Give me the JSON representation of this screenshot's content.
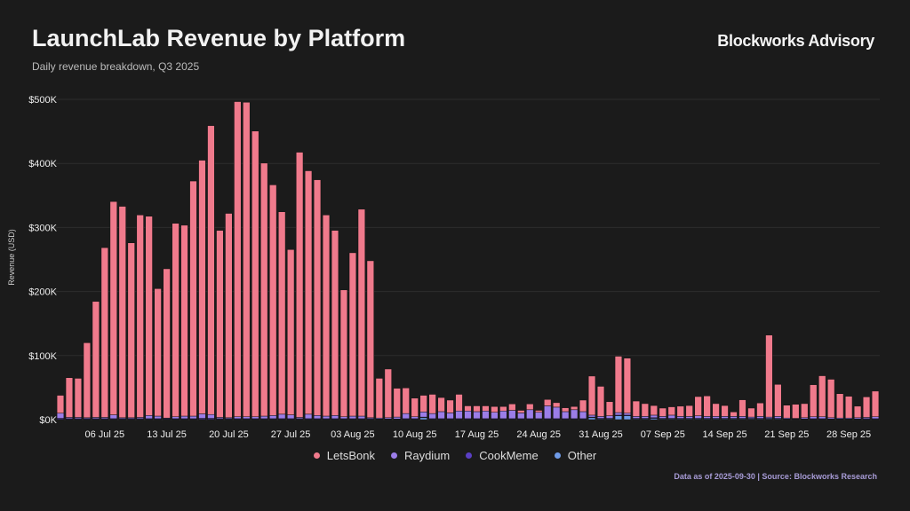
{
  "header": {
    "title": "LaunchLab Revenue by Platform",
    "subtitle": "Daily revenue breakdown, Q3 2025",
    "brand": "Blockworks Advisory"
  },
  "footer": "Data as of 2025-09-30 | Source: Blockworks Research",
  "colors": {
    "LetsBonk": "#f07a8c",
    "Raydium": "#9b7de8",
    "CookMeme": "#5a3fc4",
    "Other": "#6f9be8",
    "background": "#1b1b1b",
    "grid": "#2c2c2c"
  },
  "chart_data": {
    "type": "bar",
    "stacked": true,
    "title": "LaunchLab Revenue by Platform",
    "subtitle": "Daily revenue breakdown, Q3 2025",
    "xlabel": "",
    "ylabel": "Revenue (USD)",
    "ylim": [
      0,
      500000
    ],
    "yticks": [
      0,
      100000,
      200000,
      300000,
      400000,
      500000
    ],
    "ytick_labels": [
      "$0K",
      "$100K",
      "$200K",
      "$300K",
      "$400K",
      "$500K"
    ],
    "xtick_labels": [
      {
        "day_index": 5,
        "label": "06 Jul 25"
      },
      {
        "day_index": 12,
        "label": "13 Jul 25"
      },
      {
        "day_index": 19,
        "label": "20 Jul 25"
      },
      {
        "day_index": 26,
        "label": "27 Jul 25"
      },
      {
        "day_index": 33,
        "label": "03 Aug 25"
      },
      {
        "day_index": 40,
        "label": "10 Aug 25"
      },
      {
        "day_index": 47,
        "label": "17 Aug 25"
      },
      {
        "day_index": 54,
        "label": "24 Aug 25"
      },
      {
        "day_index": 61,
        "label": "31 Aug 25"
      },
      {
        "day_index": 68,
        "label": "07 Sep 25"
      },
      {
        "day_index": 75,
        "label": "14 Sep 25"
      },
      {
        "day_index": 82,
        "label": "21 Sep 25"
      },
      {
        "day_index": 89,
        "label": "28 Sep 25"
      }
    ],
    "x_start": "2025-07-01",
    "x_end": "2025-09-30",
    "grid": true,
    "legend_position": "bottom",
    "series": [
      {
        "name": "LetsBonk",
        "values": [
          28000,
          62000,
          61000,
          117000,
          181000,
          265000,
          333000,
          330000,
          273000,
          316000,
          311000,
          199000,
          233000,
          302000,
          298000,
          367000,
          396000,
          451000,
          292000,
          319000,
          492000,
          491000,
          446000,
          395000,
          360000,
          316000,
          258000,
          414000,
          380000,
          368000,
          314000,
          289000,
          198000,
          255000,
          323000,
          245000,
          62000,
          76000,
          45000,
          40000,
          29000,
          26000,
          30000,
          22000,
          20000,
          26000,
          8000,
          9000,
          8000,
          9000,
          7000,
          10000,
          4000,
          9000,
          3000,
          10000,
          7000,
          6000,
          5000,
          18000,
          61000,
          47000,
          22000,
          88000,
          86000,
          24000,
          20000,
          15000,
          13000,
          13000,
          16000,
          17000,
          30000,
          32000,
          20000,
          17000,
          7000,
          26000,
          14000,
          21000,
          128000,
          50000,
          20000,
          22000,
          22000,
          50000,
          64000,
          60000,
          38000,
          34000,
          18000,
          32000,
          40000
        ]
      },
      {
        "name": "Raydium",
        "values": [
          8000,
          2000,
          2000,
          1500,
          2000,
          2000,
          6000,
          1500,
          1500,
          2000,
          5000,
          4000,
          1000,
          3000,
          4000,
          4000,
          7000,
          6000,
          2000,
          1500,
          3000,
          3000,
          3000,
          4000,
          5000,
          7000,
          6000,
          2000,
          7000,
          5000,
          4000,
          5000,
          3000,
          4000,
          4000,
          1500,
          1500,
          2000,
          3000,
          8000,
          3000,
          8000,
          8000,
          11000,
          9000,
          12000,
          12000,
          11000,
          12000,
          10000,
          12000,
          13000,
          9000,
          14000,
          10000,
          20000,
          18000,
          11000,
          14000,
          11000,
          3000,
          3000,
          4000,
          4000,
          3000,
          3000,
          3000,
          4000,
          3000,
          5000,
          3000,
          3000,
          4000,
          3000,
          3000,
          3000,
          3000,
          3000,
          2000,
          3000,
          2000,
          3000,
          1500,
          1000,
          2000,
          3000,
          3000,
          2000,
          1500,
          1500,
          2000,
          2000,
          3000
        ]
      },
      {
        "name": "CookMeme",
        "values": [
          1500,
          1000,
          1000,
          1000,
          1000,
          1000,
          1000,
          1000,
          1000,
          1000,
          1000,
          1000,
          1000,
          1000,
          1000,
          1000,
          1500,
          1500,
          1000,
          1000,
          1000,
          1000,
          1000,
          1000,
          1000,
          1000,
          1000,
          1000,
          1000,
          1000,
          1000,
          1000,
          1000,
          1000,
          1000,
          1000,
          500,
          500,
          500,
          1000,
          1000,
          1000,
          1000,
          1000,
          1000,
          1000,
          1000,
          1000,
          1000,
          1000,
          1000,
          1000,
          1000,
          1000,
          1000,
          1000,
          1000,
          1000,
          1000,
          1000,
          1000,
          1000,
          1000,
          1000,
          1000,
          1000,
          1000,
          1000,
          1000,
          1000,
          1000,
          1000,
          1000,
          1000,
          1000,
          1000,
          1000,
          1000,
          1000,
          1000,
          1000,
          1000,
          500,
          500,
          500,
          1000,
          1000,
          500,
          500,
          500,
          500,
          1000,
          1000
        ]
      },
      {
        "name": "Other",
        "values": [
          500,
          500,
          500,
          500,
          500,
          500,
          500,
          500,
          500,
          500,
          500,
          500,
          500,
          500,
          500,
          500,
          500,
          500,
          500,
          500,
          500,
          500,
          500,
          500,
          500,
          500,
          500,
          500,
          500,
          500,
          500,
          500,
          500,
          500,
          500,
          500,
          500,
          500,
          500,
          500,
          500,
          3000,
          500,
          500,
          500,
          500,
          500,
          500,
          500,
          500,
          500,
          500,
          500,
          500,
          500,
          500,
          500,
          500,
          500,
          500,
          3000,
          1000,
          1000,
          6000,
          6000,
          1000,
          1000,
          2000,
          1000,
          1000,
          1000,
          1000,
          1000,
          1000,
          1000,
          1000,
          1000,
          1000,
          1000,
          1000,
          1000,
          1000,
          500,
          500,
          500,
          500,
          500,
          500,
          500,
          500,
          500,
          500,
          500
        ]
      }
    ]
  },
  "legend": [
    {
      "label": "LetsBonk",
      "color": "#f07a8c"
    },
    {
      "label": "Raydium",
      "color": "#9b7de8"
    },
    {
      "label": "CookMeme",
      "color": "#5a3fc4"
    },
    {
      "label": "Other",
      "color": "#6f9be8"
    }
  ]
}
